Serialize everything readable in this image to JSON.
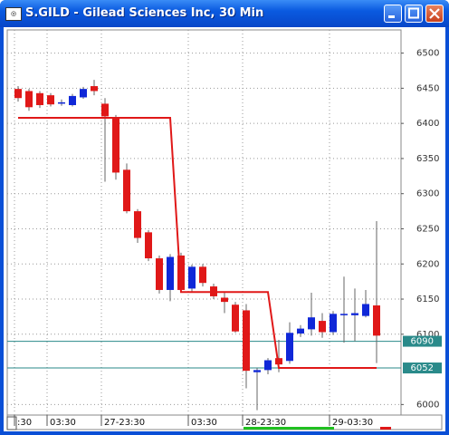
{
  "window_title": "S.GILD - Gilead Sciences Inc, 30 Min",
  "chart_data": {
    "type": "candlestick",
    "categories": [
      ":30",
      null,
      null,
      "03:30",
      null,
      null,
      null,
      null,
      "27-23:30",
      null,
      null,
      null,
      null,
      null,
      null,
      null,
      "03:30",
      null,
      null,
      null,
      null,
      "28-23:30",
      null,
      null,
      null,
      null,
      null,
      null,
      null,
      "29-03:30",
      null,
      null,
      null,
      null
    ],
    "open": [
      6449,
      6446,
      6443,
      6440,
      6428,
      6426,
      6437,
      6453,
      6428,
      6408,
      6334,
      6275,
      6245,
      6208,
      6163,
      6212,
      6165,
      6196,
      6168,
      6152,
      6142,
      6134,
      6046,
      6049,
      6066,
      6062,
      6101,
      6107,
      6119,
      6103,
      6127,
      6127,
      6126,
      6141
    ],
    "high": [
      6453,
      6449,
      6446,
      6443,
      6434,
      6442,
      6452,
      6462,
      6436,
      6412,
      6343,
      6278,
      6248,
      6212,
      6214,
      6216,
      6199,
      6200,
      6172,
      6160,
      6146,
      6143,
      6052,
      6066,
      6092,
      6117,
      6113,
      6159,
      6130,
      6133,
      6182,
      6165,
      6163,
      6261
    ],
    "low": [
      6431,
      6418,
      6422,
      6424,
      6425,
      6424,
      6435,
      6440,
      6317,
      6320,
      6272,
      6230,
      6204,
      6158,
      6147,
      6160,
      6160,
      6168,
      6150,
      6130,
      6102,
      6023,
      5992,
      6043,
      6046,
      6058,
      6096,
      6098,
      6095,
      6099,
      6088,
      6090,
      6124,
      6059
    ],
    "close": [
      6436,
      6423,
      6426,
      6427,
      6430,
      6439,
      6449,
      6446,
      6410,
      6330,
      6275,
      6237,
      6208,
      6163,
      6210,
      6163,
      6196,
      6173,
      6154,
      6146,
      6104,
      6048,
      6049,
      6063,
      6057,
      6102,
      6108,
      6124,
      6103,
      6129,
      6129,
      6130,
      6143,
      6098
    ],
    "up_color": "#1028d8",
    "down_color": "#e01818",
    "stop_line": {
      "color": "#e01818",
      "values": [
        6408,
        6408,
        6408,
        6408,
        6408,
        6408,
        6408,
        6408,
        6408,
        6408,
        6408,
        6408,
        6408,
        6408,
        6408,
        6160,
        6160,
        6160,
        6160,
        6160,
        6160,
        6160,
        6160,
        6160,
        6052,
        6052,
        6052,
        6052,
        6052,
        6052,
        6052,
        6052,
        6052,
        6052
      ]
    },
    "price_lines": [
      6090,
      6052
    ],
    "price_line_color": "#2a8a8a",
    "ylim": [
      5985,
      6533
    ],
    "yticks": [
      6000,
      6100,
      6150,
      6200,
      6250,
      6300,
      6350,
      6400,
      6450,
      6500
    ],
    "grid": true
  }
}
